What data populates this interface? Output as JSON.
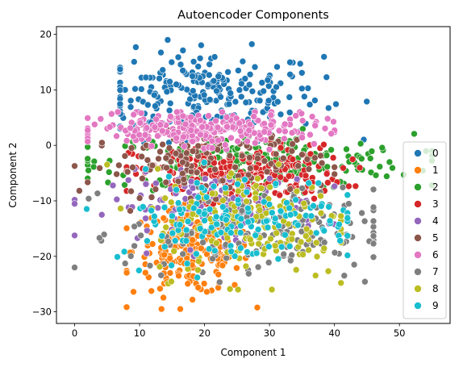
{
  "chart_data": {
    "type": "scatter",
    "title": "Autoencoder Components",
    "xlabel": "Component 1",
    "ylabel": "Component 2",
    "xlim": [
      -2.8,
      57.8
    ],
    "ylim": [
      -32.1,
      21.4
    ],
    "xticks": [
      0,
      10,
      20,
      30,
      40,
      50
    ],
    "yticks": [
      -30,
      -20,
      -10,
      0,
      10,
      20
    ],
    "grid": false,
    "legend_position": "right",
    "series": [
      {
        "name": "0",
        "color": "#1f77b4",
        "center": [
          20,
          9
        ],
        "spread": [
          9,
          4
        ],
        "extent_x": [
          7,
          55
        ],
        "extent_y": [
          0.5,
          19
        ],
        "n": 260
      },
      {
        "name": "1",
        "color": "#ff7f0e",
        "center": [
          18,
          -19
        ],
        "spread": [
          4.5,
          4
        ],
        "extent_x": [
          8,
          32
        ],
        "extent_y": [
          -29.5,
          -8
        ],
        "n": 220
      },
      {
        "name": "2",
        "color": "#2ca02c",
        "center": [
          28,
          -3
        ],
        "spread": [
          12,
          2.5
        ],
        "extent_x": [
          2,
          55
        ],
        "extent_y": [
          -10,
          4
        ],
        "n": 240
      },
      {
        "name": "3",
        "color": "#d62728",
        "center": [
          25,
          -5
        ],
        "spread": [
          8,
          2.5
        ],
        "extent_x": [
          8,
          45
        ],
        "extent_y": [
          -11,
          1
        ],
        "n": 230
      },
      {
        "name": "4",
        "color": "#9467bd",
        "center": [
          22,
          -11
        ],
        "spread": [
          8,
          3
        ],
        "extent_x": [
          0,
          40
        ],
        "extent_y": [
          -20,
          0
        ],
        "n": 140
      },
      {
        "name": "5",
        "color": "#8c564b",
        "center": [
          20,
          -3
        ],
        "spread": [
          9,
          3
        ],
        "extent_x": [
          0,
          40
        ],
        "extent_y": [
          -12,
          6
        ],
        "n": 130
      },
      {
        "name": "6",
        "color": "#e377c2",
        "center": [
          20,
          3
        ],
        "spread": [
          9,
          1.5
        ],
        "extent_x": [
          2,
          40
        ],
        "extent_y": [
          -1,
          6
        ],
        "n": 260
      },
      {
        "name": "7",
        "color": "#7f7f7f",
        "center": [
          28,
          -16
        ],
        "spread": [
          10,
          4
        ],
        "extent_x": [
          0,
          46
        ],
        "extent_y": [
          -26.5,
          0
        ],
        "n": 160
      },
      {
        "name": "8",
        "color": "#bcbd22",
        "center": [
          28,
          -14
        ],
        "spread": [
          8,
          5
        ],
        "extent_x": [
          5,
          41
        ],
        "extent_y": [
          -26,
          -2
        ],
        "n": 170
      },
      {
        "name": "9",
        "color": "#17becf",
        "center": [
          25,
          -13
        ],
        "spread": [
          10,
          4
        ],
        "extent_x": [
          0,
          42
        ],
        "extent_y": [
          -25,
          0
        ],
        "n": 150
      }
    ]
  }
}
